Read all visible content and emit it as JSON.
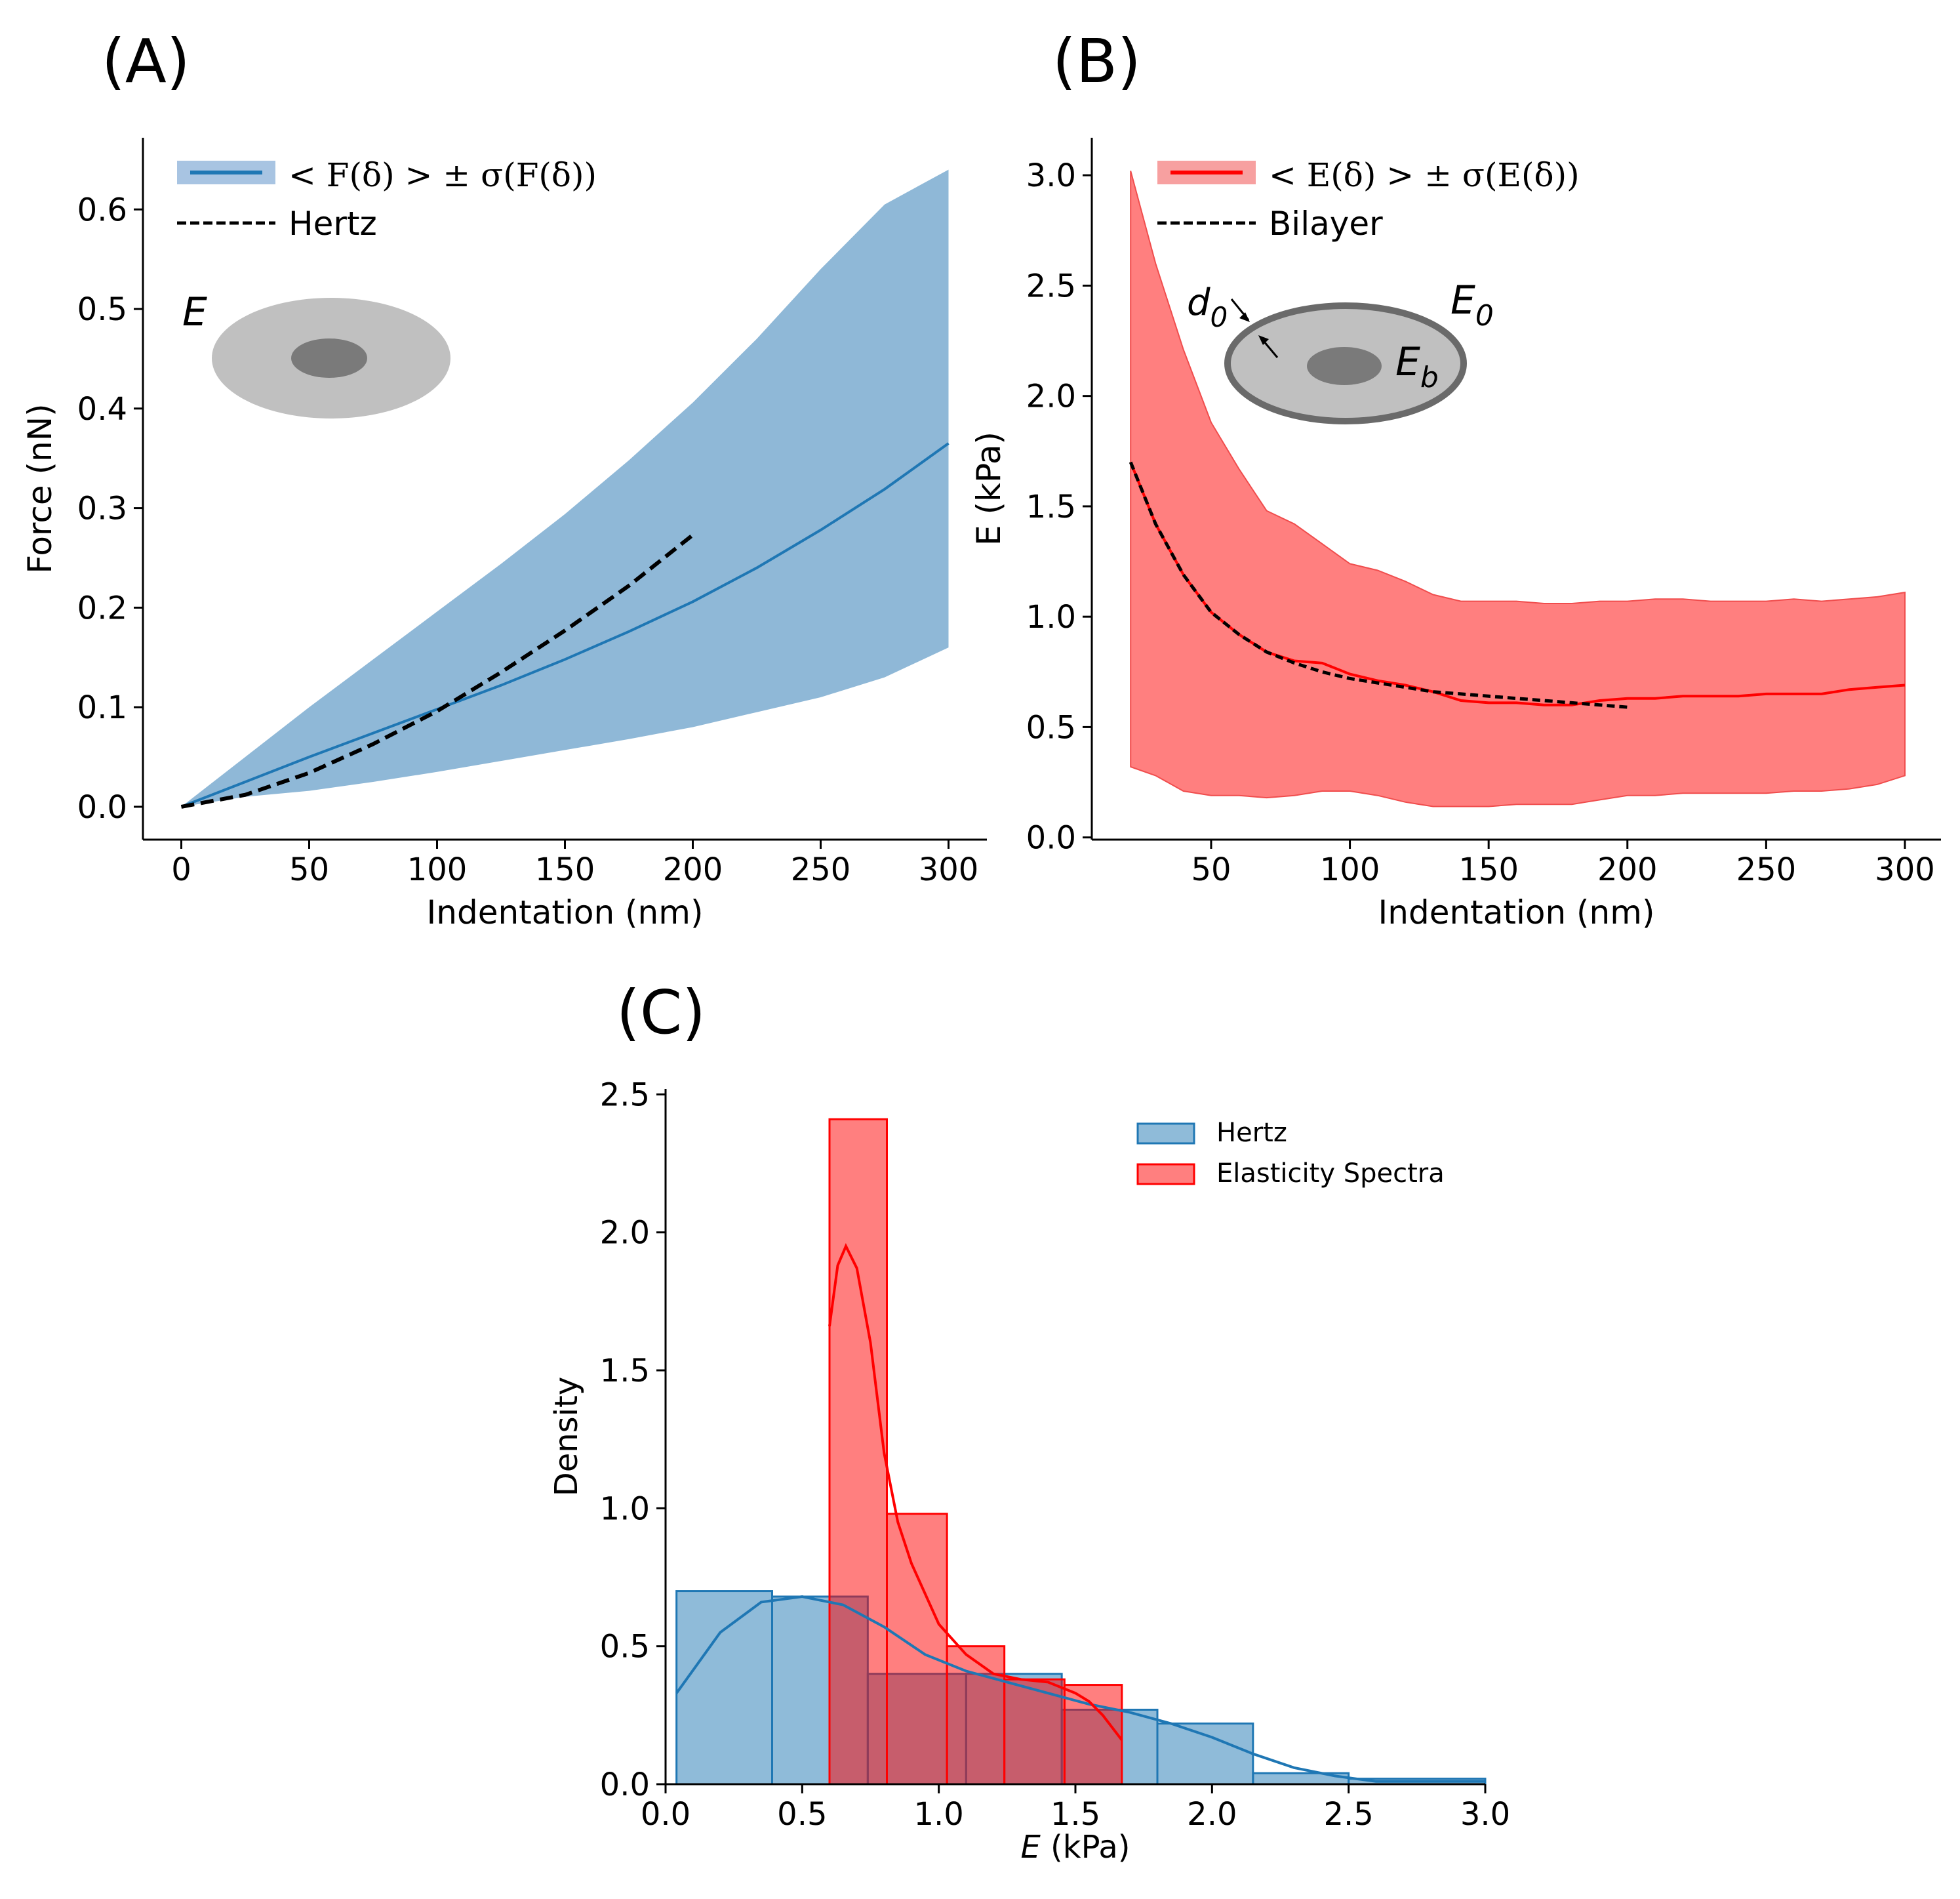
{
  "panels": {
    "A": {
      "label": "(A)"
    },
    "B": {
      "label": "(B)"
    },
    "C": {
      "label": "(C)"
    }
  },
  "colors": {
    "blue_line": "#1f77b4",
    "blue_fill": "#8fb8d7",
    "red_line": "#ff0000",
    "red_fill": "#ff7f7f",
    "cell_light": "#c0c0c0",
    "cell_dark": "#7a7a7a",
    "cell_border": "#6a6a6a"
  },
  "chart_data": [
    {
      "id": "A",
      "type": "line",
      "title": "",
      "xlabel": "Indentation (nm)",
      "ylabel": "Force (nN)",
      "xlim": [
        -15,
        315
      ],
      "ylim": [
        -0.033,
        0.672
      ],
      "xticks": [
        0,
        50,
        100,
        150,
        200,
        250,
        300
      ],
      "xtick_labels": [
        "0",
        "50",
        "100",
        "150",
        "200",
        "250",
        "300"
      ],
      "yticks": [
        0.0,
        0.1,
        0.2,
        0.3,
        0.4,
        0.5,
        0.6
      ],
      "ytick_labels": [
        "0.0",
        "0.1",
        "0.2",
        "0.3",
        "0.4",
        "0.5",
        "0.6"
      ],
      "legend": {
        "mean_label": "< F(δ) > ± σ(F(δ))",
        "fit_label": "Hertz",
        "placement": "top-left"
      },
      "inset": {
        "modulus_label": "E"
      },
      "series": [
        {
          "name": "mean",
          "x": [
            0,
            25,
            50,
            75,
            100,
            125,
            150,
            175,
            200,
            225,
            250,
            275,
            300
          ],
          "values": [
            0.0,
            0.025,
            0.05,
            0.074,
            0.098,
            0.122,
            0.148,
            0.176,
            0.206,
            0.24,
            0.278,
            0.319,
            0.365
          ]
        },
        {
          "name": "upper",
          "x": [
            0,
            25,
            50,
            75,
            100,
            125,
            150,
            175,
            200,
            225,
            250,
            275,
            300
          ],
          "values": [
            0.0,
            0.05,
            0.1,
            0.148,
            0.196,
            0.244,
            0.294,
            0.348,
            0.406,
            0.47,
            0.54,
            0.605,
            0.64
          ]
        },
        {
          "name": "lower",
          "x": [
            0,
            25,
            50,
            75,
            100,
            125,
            150,
            175,
            200,
            225,
            250,
            275,
            300
          ],
          "values": [
            0.0,
            0.01,
            0.016,
            0.025,
            0.035,
            0.046,
            0.057,
            0.068,
            0.08,
            0.095,
            0.11,
            0.13,
            0.16
          ]
        },
        {
          "name": "Hertz",
          "x": [
            0,
            25,
            50,
            75,
            100,
            125,
            150,
            175,
            200
          ],
          "values": [
            0.0,
            0.012,
            0.034,
            0.063,
            0.096,
            0.135,
            0.177,
            0.222,
            0.273
          ]
        }
      ]
    },
    {
      "id": "B",
      "type": "line",
      "title": "",
      "xlabel": "Indentation (nm)",
      "ylabel": "E (kPa)",
      "xlim": [
        7,
        313
      ],
      "ylim": [
        -0.01,
        3.17
      ],
      "xticks": [
        50,
        100,
        150,
        200,
        250,
        300
      ],
      "xtick_labels": [
        "50",
        "100",
        "150",
        "200",
        "250",
        "300"
      ],
      "yticks": [
        0.0,
        0.5,
        1.0,
        1.5,
        2.0,
        2.5,
        3.0
      ],
      "ytick_labels": [
        "0.0",
        "0.5",
        "1.0",
        "1.5",
        "2.0",
        "2.5",
        "3.0"
      ],
      "legend": {
        "mean_label": "< E(δ) > ± σ(E(δ))",
        "fit_label": "Bilayer",
        "placement": "top-left"
      },
      "inset": {
        "thickness_label": "d",
        "thickness_sub": "0",
        "cortex_label": "E",
        "cortex_sub": "0",
        "bulk_label": "E",
        "bulk_sub": "b"
      },
      "series": [
        {
          "name": "mean",
          "x": [
            21,
            30,
            40,
            50,
            60,
            70,
            80,
            90,
            100,
            110,
            120,
            130,
            140,
            150,
            160,
            170,
            180,
            190,
            200,
            210,
            220,
            230,
            240,
            250,
            260,
            270,
            280,
            290,
            300
          ],
          "values": [
            1.7,
            1.42,
            1.19,
            1.02,
            0.92,
            0.84,
            0.8,
            0.79,
            0.74,
            0.71,
            0.69,
            0.66,
            0.62,
            0.61,
            0.61,
            0.6,
            0.6,
            0.62,
            0.63,
            0.63,
            0.64,
            0.64,
            0.64,
            0.65,
            0.65,
            0.65,
            0.67,
            0.68,
            0.69
          ]
        },
        {
          "name": "upper",
          "x": [
            21,
            30,
            40,
            50,
            60,
            70,
            80,
            90,
            100,
            110,
            120,
            130,
            140,
            150,
            160,
            170,
            180,
            190,
            200,
            210,
            220,
            230,
            240,
            250,
            260,
            270,
            280,
            290,
            300
          ],
          "values": [
            3.02,
            2.6,
            2.21,
            1.88,
            1.67,
            1.48,
            1.42,
            1.33,
            1.24,
            1.21,
            1.16,
            1.1,
            1.07,
            1.07,
            1.07,
            1.06,
            1.06,
            1.07,
            1.07,
            1.08,
            1.08,
            1.07,
            1.07,
            1.07,
            1.08,
            1.07,
            1.08,
            1.09,
            1.11
          ]
        },
        {
          "name": "lower",
          "x": [
            21,
            30,
            40,
            50,
            60,
            70,
            80,
            90,
            100,
            110,
            120,
            130,
            140,
            150,
            160,
            170,
            180,
            190,
            200,
            210,
            220,
            230,
            240,
            250,
            260,
            270,
            280,
            290,
            300
          ],
          "values": [
            0.32,
            0.28,
            0.21,
            0.19,
            0.19,
            0.18,
            0.19,
            0.21,
            0.21,
            0.19,
            0.16,
            0.14,
            0.14,
            0.14,
            0.15,
            0.15,
            0.15,
            0.17,
            0.19,
            0.19,
            0.2,
            0.2,
            0.2,
            0.2,
            0.21,
            0.21,
            0.22,
            0.24,
            0.28
          ]
        },
        {
          "name": "Bilayer",
          "x": [
            21,
            30,
            40,
            50,
            60,
            70,
            80,
            90,
            100,
            110,
            120,
            130,
            140,
            150,
            160,
            170,
            180,
            190,
            200
          ],
          "values": [
            1.7,
            1.42,
            1.19,
            1.02,
            0.92,
            0.84,
            0.79,
            0.75,
            0.72,
            0.7,
            0.68,
            0.66,
            0.65,
            0.64,
            0.63,
            0.62,
            0.61,
            0.6,
            0.59
          ]
        }
      ]
    },
    {
      "id": "C",
      "type": "histogram",
      "title": "",
      "xlabel": "E (kPa)",
      "ylabel": "Density",
      "xlim": [
        0.0,
        3.0
      ],
      "ylim": [
        0.0,
        2.52
      ],
      "xticks": [
        0.0,
        0.5,
        1.0,
        1.5,
        2.0,
        2.5,
        3.0
      ],
      "xtick_labels": [
        "0.0",
        "0.5",
        "1.0",
        "1.5",
        "2.0",
        "2.5",
        "3.0"
      ],
      "yticks": [
        0.0,
        0.5,
        1.0,
        1.5,
        2.0,
        2.5
      ],
      "ytick_labels": [
        "0.0",
        "0.5",
        "1.0",
        "1.5",
        "2.0",
        "2.5"
      ],
      "legend": {
        "entries": [
          "Hertz",
          "Elasticity Spectra"
        ],
        "placement": "upper-right"
      },
      "series": [
        {
          "name": "Hertz",
          "bin_edges": [
            0.04,
            0.39,
            0.74,
            1.1,
            1.45,
            1.8,
            2.15,
            2.5,
            3.0
          ],
          "values": [
            0.7,
            0.68,
            0.4,
            0.4,
            0.27,
            0.22,
            0.04,
            0.02
          ],
          "kde_x": [
            0.04,
            0.2,
            0.35,
            0.5,
            0.65,
            0.8,
            0.95,
            1.1,
            1.25,
            1.4,
            1.55,
            1.7,
            1.85,
            2.0,
            2.15,
            2.3,
            2.45,
            2.6,
            2.8,
            3.0
          ],
          "kde_y": [
            0.33,
            0.55,
            0.66,
            0.68,
            0.65,
            0.57,
            0.47,
            0.41,
            0.37,
            0.33,
            0.29,
            0.26,
            0.22,
            0.17,
            0.11,
            0.06,
            0.03,
            0.01,
            0.01,
            0.01
          ]
        },
        {
          "name": "Elasticity Spectra",
          "bin_edges": [
            0.6,
            0.81,
            1.03,
            1.24,
            1.46,
            1.67
          ],
          "values": [
            2.41,
            0.98,
            0.5,
            0.38,
            0.36
          ],
          "kde_x": [
            0.6,
            0.63,
            0.66,
            0.7,
            0.75,
            0.8,
            0.85,
            0.9,
            1.0,
            1.1,
            1.2,
            1.3,
            1.4,
            1.5,
            1.55,
            1.6,
            1.67
          ],
          "kde_y": [
            1.66,
            1.88,
            1.95,
            1.87,
            1.6,
            1.2,
            0.95,
            0.8,
            0.58,
            0.47,
            0.4,
            0.38,
            0.37,
            0.33,
            0.3,
            0.25,
            0.16
          ]
        }
      ]
    }
  ]
}
